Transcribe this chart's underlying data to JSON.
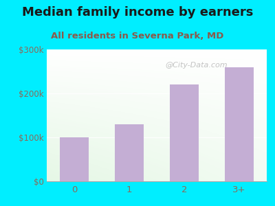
{
  "title": "Median family income by earners",
  "subtitle": "All residents in Severna Park, MD",
  "categories": [
    "0",
    "1",
    "2",
    "3+"
  ],
  "values": [
    100000,
    130000,
    220000,
    260000
  ],
  "bar_color": "#c4aed4",
  "outer_bg_color": "#00eeff",
  "title_color": "#1a1a1a",
  "subtitle_color": "#8b5a4a",
  "ytick_color": "#8b6a5a",
  "xtick_color": "#8b6a5a",
  "ylim": [
    0,
    300000
  ],
  "yticks": [
    0,
    100000,
    200000,
    300000
  ],
  "ytick_labels": [
    "$0",
    "$100k",
    "$200k",
    "$300k"
  ],
  "watermark": "@City-Data.com",
  "title_fontsize": 13,
  "subtitle_fontsize": 9.5
}
